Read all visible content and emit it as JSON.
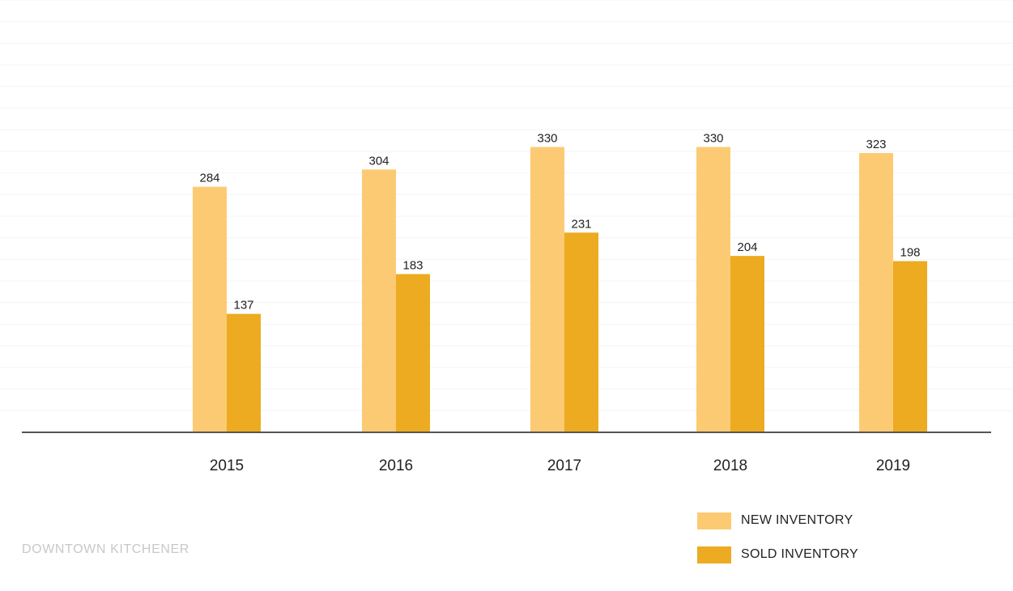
{
  "chart_data": {
    "type": "bar",
    "categories": [
      "2015",
      "2016",
      "2017",
      "2018",
      "2019"
    ],
    "series": [
      {
        "name": "NEW INVENTORY",
        "values": [
          284,
          304,
          330,
          330,
          323
        ],
        "color": "#fdca74"
      },
      {
        "name": "SOLD INVENTORY",
        "values": [
          137,
          183,
          231,
          204,
          198
        ],
        "color": "#ecab21"
      }
    ],
    "title": "",
    "xlabel": "",
    "ylabel": "",
    "ylim": [
      0,
      500
    ],
    "grid": true,
    "legend": "bottom-right"
  },
  "source_label": "DOWNTOWN KITCHENER",
  "colors": {
    "axis": "#555555",
    "grid": "#f4f4f4",
    "text": "#222222",
    "source": "#c8c8c8"
  }
}
